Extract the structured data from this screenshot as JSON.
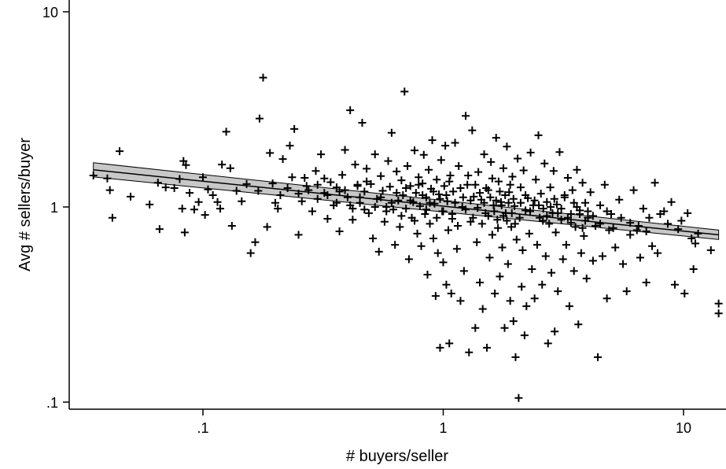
{
  "chart_data": {
    "type": "scatter",
    "title": "",
    "xlabel": "# buyers/seller",
    "ylabel": "Avg # sellers/buyer",
    "xscale": "log",
    "yscale": "log",
    "xlim": [
      0.0325,
      14
    ],
    "ylim": [
      0.0833,
      10.2
    ],
    "x_ticks": [
      {
        "value": 0.1,
        "label": ".1"
      },
      {
        "value": 1,
        "label": "1"
      },
      {
        "value": 10,
        "label": "10"
      }
    ],
    "y_ticks": [
      {
        "value": 0.1,
        "label": ".1"
      },
      {
        "value": 1,
        "label": "1"
      },
      {
        "value": 10,
        "label": "10"
      }
    ],
    "marker": "plus",
    "grid": false,
    "fit_line": {
      "type": "linear-on-log",
      "x_start": 0.035,
      "y_start": 1.55,
      "x_end": 14,
      "y_end": 0.72,
      "confidence_band": true,
      "band_fill": "#c8c8c8"
    },
    "points": [
      [
        0.035,
        1.45
      ],
      [
        0.04,
        1.4
      ],
      [
        0.041,
        1.22
      ],
      [
        0.042,
        0.88
      ],
      [
        0.045,
        1.93
      ],
      [
        0.05,
        1.13
      ],
      [
        0.06,
        1.03
      ],
      [
        0.065,
        1.33
      ],
      [
        0.066,
        0.77
      ],
      [
        0.07,
        1.26
      ],
      [
        0.076,
        1.25
      ],
      [
        0.08,
        1.39
      ],
      [
        0.082,
        0.98
      ],
      [
        0.083,
        1.72
      ],
      [
        0.084,
        0.74
      ],
      [
        0.085,
        1.64
      ],
      [
        0.088,
        1.18
      ],
      [
        0.092,
        0.97
      ],
      [
        0.096,
        1.06
      ],
      [
        0.1,
        1.42
      ],
      [
        0.102,
        0.91
      ],
      [
        0.105,
        1.23
      ],
      [
        0.11,
        1.15
      ],
      [
        0.115,
        1.06
      ],
      [
        0.118,
        0.98
      ],
      [
        0.12,
        1.65
      ],
      [
        0.125,
        2.43
      ],
      [
        0.13,
        1.58
      ],
      [
        0.132,
        0.8
      ],
      [
        0.138,
        1.21
      ],
      [
        0.145,
        1.07
      ],
      [
        0.152,
        1.31
      ],
      [
        0.158,
        0.58
      ],
      [
        0.165,
        0.66
      ],
      [
        0.17,
        1.21
      ],
      [
        0.172,
        2.84
      ],
      [
        0.178,
        4.6
      ],
      [
        0.185,
        0.79
      ],
      [
        0.19,
        1.89
      ],
      [
        0.195,
        1.32
      ],
      [
        0.2,
        1.05
      ],
      [
        0.205,
        0.98
      ],
      [
        0.21,
        1.15
      ],
      [
        0.215,
        1.76
      ],
      [
        0.225,
        1.25
      ],
      [
        0.23,
        2.06
      ],
      [
        0.235,
        1.42
      ],
      [
        0.24,
        2.51
      ],
      [
        0.25,
        0.72
      ],
      [
        0.258,
        1.07
      ],
      [
        0.265,
        1.41
      ],
      [
        0.275,
        1.22
      ],
      [
        0.285,
        0.95
      ],
      [
        0.295,
        1.53
      ],
      [
        0.3,
        1.1
      ],
      [
        0.31,
        1.86
      ],
      [
        0.32,
        1.18
      ],
      [
        0.33,
        0.87
      ],
      [
        0.34,
        1.34
      ],
      [
        0.35,
        1.02
      ],
      [
        0.36,
        1.26
      ],
      [
        0.37,
        0.75
      ],
      [
        0.38,
        1.46
      ],
      [
        0.39,
        1.96
      ],
      [
        0.4,
        1.12
      ],
      [
        0.41,
        3.13
      ],
      [
        0.42,
        0.86
      ],
      [
        0.43,
        1.65
      ],
      [
        0.44,
        1.3
      ],
      [
        0.45,
        1.05
      ],
      [
        0.46,
        2.7
      ],
      [
        0.47,
        1.2
      ],
      [
        0.48,
        1.57
      ],
      [
        0.49,
        0.93
      ],
      [
        0.5,
        1.31
      ],
      [
        0.51,
        0.69
      ],
      [
        0.52,
        1.86
      ],
      [
        0.53,
        1.1
      ],
      [
        0.54,
        0.59
      ],
      [
        0.55,
        1.44
      ],
      [
        0.56,
        1.21
      ],
      [
        0.57,
        0.84
      ],
      [
        0.58,
        1.0
      ],
      [
        0.59,
        1.72
      ],
      [
        0.6,
        1.27
      ],
      [
        0.61,
        2.4
      ],
      [
        0.62,
        0.97
      ],
      [
        0.63,
        0.64
      ],
      [
        0.64,
        1.52
      ],
      [
        0.65,
        1.08
      ],
      [
        0.66,
        0.79
      ],
      [
        0.67,
        1.37
      ],
      [
        0.68,
        1.15
      ],
      [
        0.69,
        3.9
      ],
      [
        0.7,
        0.98
      ],
      [
        0.71,
        1.62
      ],
      [
        0.72,
        0.54
      ],
      [
        0.73,
        1.28
      ],
      [
        0.74,
        0.88
      ],
      [
        0.75,
        1.06
      ],
      [
        0.76,
        1.95
      ],
      [
        0.77,
        1.18
      ],
      [
        0.78,
        0.73
      ],
      [
        0.79,
        1.42
      ],
      [
        0.8,
        1.01
      ],
      [
        0.81,
        0.63
      ],
      [
        0.82,
        1.32
      ],
      [
        0.83,
        1.85
      ],
      [
        0.84,
        0.92
      ],
      [
        0.85,
        1.12
      ],
      [
        0.86,
        0.45
      ],
      [
        0.87,
        1.55
      ],
      [
        0.88,
        0.82
      ],
      [
        0.89,
        1.24
      ],
      [
        0.9,
        2.2
      ],
      [
        0.91,
        0.69
      ],
      [
        0.92,
        1.04
      ],
      [
        0.93,
        0.35
      ],
      [
        0.94,
        1.38
      ],
      [
        0.95,
        0.58
      ],
      [
        0.96,
        1.16
      ],
      [
        0.97,
        0.19
      ],
      [
        0.98,
        1.74
      ],
      [
        0.99,
        0.95
      ],
      [
        1.0,
        0.52
      ],
      [
        1.01,
        1.28
      ],
      [
        1.02,
        2.06
      ],
      [
        1.03,
        0.4
      ],
      [
        1.04,
        1.07
      ],
      [
        1.05,
        0.76
      ],
      [
        1.06,
        0.2
      ],
      [
        1.07,
        1.45
      ],
      [
        1.08,
        0.36
      ],
      [
        1.09,
        0.87
      ],
      [
        1.1,
        1.2
      ],
      [
        1.12,
        2.13
      ],
      [
        1.14,
        0.61
      ],
      [
        1.16,
        1.62
      ],
      [
        1.18,
        0.33
      ],
      [
        1.2,
        1.0
      ],
      [
        1.22,
        0.47
      ],
      [
        1.24,
        2.93
      ],
      [
        1.26,
        1.3
      ],
      [
        1.28,
        0.18
      ],
      [
        1.3,
        0.84
      ],
      [
        1.32,
        2.47
      ],
      [
        1.34,
        1.13
      ],
      [
        1.36,
        0.24
      ],
      [
        1.38,
        0.66
      ],
      [
        1.4,
        1.51
      ],
      [
        1.42,
        0.41
      ],
      [
        1.44,
        1.09
      ],
      [
        1.46,
        0.3
      ],
      [
        1.48,
        1.86
      ],
      [
        1.5,
        0.93
      ],
      [
        1.52,
        0.19
      ],
      [
        1.54,
        1.22
      ],
      [
        1.56,
        0.55
      ],
      [
        1.58,
        1.7
      ],
      [
        1.6,
        0.72
      ],
      [
        1.62,
        1.02
      ],
      [
        1.64,
        0.36
      ],
      [
        1.66,
        2.26
      ],
      [
        1.68,
        0.86
      ],
      [
        1.7,
        1.35
      ],
      [
        1.72,
        0.44
      ],
      [
        1.74,
        1.06
      ],
      [
        1.76,
        0.62
      ],
      [
        1.78,
        1.58
      ],
      [
        1.8,
        0.24
      ],
      [
        1.82,
        0.93
      ],
      [
        1.84,
        2.04
      ],
      [
        1.86,
        0.51
      ],
      [
        1.88,
        1.19
      ],
      [
        1.9,
        0.33
      ],
      [
        1.92,
        0.79
      ],
      [
        1.94,
        1.43
      ],
      [
        1.96,
        0.26
      ],
      [
        1.98,
        1.01
      ],
      [
        2.0,
        0.17
      ],
      [
        2.02,
        0.68
      ],
      [
        2.04,
        1.77
      ],
      [
        2.06,
        0.105
      ],
      [
        2.08,
        0.88
      ],
      [
        2.1,
        1.26
      ],
      [
        2.12,
        0.39
      ],
      [
        2.14,
        0.6
      ],
      [
        2.16,
        1.54
      ],
      [
        2.18,
        0.22
      ],
      [
        2.2,
        0.96
      ],
      [
        2.22,
        0.31
      ],
      [
        2.25,
        1.11
      ],
      [
        2.28,
        0.73
      ],
      [
        2.31,
        1.9
      ],
      [
        2.34,
        0.48
      ],
      [
        2.37,
        1.02
      ],
      [
        2.4,
        0.34
      ],
      [
        2.43,
        1.38
      ],
      [
        2.46,
        0.64
      ],
      [
        2.49,
        2.33
      ],
      [
        2.52,
        0.88
      ],
      [
        2.55,
        1.17
      ],
      [
        2.58,
        0.4
      ],
      [
        2.61,
        0.98
      ],
      [
        2.64,
        1.67
      ],
      [
        2.67,
        0.56
      ],
      [
        2.7,
        1.06
      ],
      [
        2.73,
        0.2
      ],
      [
        2.76,
        0.82
      ],
      [
        2.79,
        1.26
      ],
      [
        2.82,
        0.46
      ],
      [
        2.85,
        0.93
      ],
      [
        2.88,
        1.53
      ],
      [
        2.91,
        0.23
      ],
      [
        2.94,
        0.74
      ],
      [
        2.97,
        1.03
      ],
      [
        3.0,
        0.37
      ],
      [
        3.05,
        1.91
      ],
      [
        3.1,
        0.86
      ],
      [
        3.15,
        0.54
      ],
      [
        3.2,
        1.12
      ],
      [
        3.25,
        0.64
      ],
      [
        3.3,
        1.41
      ],
      [
        3.35,
        0.31
      ],
      [
        3.4,
        0.92
      ],
      [
        3.45,
        1.22
      ],
      [
        3.5,
        0.47
      ],
      [
        3.55,
        0.79
      ],
      [
        3.6,
        1.55
      ],
      [
        3.65,
        0.25
      ],
      [
        3.7,
        0.96
      ],
      [
        3.75,
        0.58
      ],
      [
        3.8,
        1.33
      ],
      [
        3.85,
        0.71
      ],
      [
        3.9,
        1.05
      ],
      [
        3.95,
        0.43
      ],
      [
        4.0,
        0.88
      ],
      [
        4.1,
        1.19
      ],
      [
        4.2,
        0.53
      ],
      [
        4.3,
        0.8
      ],
      [
        4.4,
        0.17
      ],
      [
        4.5,
        1.02
      ],
      [
        4.6,
        0.56
      ],
      [
        4.7,
        1.3
      ],
      [
        4.8,
        0.34
      ],
      [
        4.9,
        0.76
      ],
      [
        5.0,
        0.92
      ],
      [
        5.2,
        0.62
      ],
      [
        5.4,
        1.09
      ],
      [
        5.6,
        0.51
      ],
      [
        5.8,
        0.37
      ],
      [
        6.0,
        0.83
      ],
      [
        6.2,
        1.22
      ],
      [
        6.4,
        0.76
      ],
      [
        6.6,
        0.55
      ],
      [
        6.8,
        0.98
      ],
      [
        7.0,
        0.41
      ],
      [
        7.2,
        0.88
      ],
      [
        7.4,
        0.63
      ],
      [
        7.6,
        1.33
      ],
      [
        7.8,
        0.58
      ],
      [
        8.0,
        0.92
      ],
      [
        8.3,
        0.95
      ],
      [
        8.6,
        0.82
      ],
      [
        8.9,
        1.06
      ],
      [
        9.2,
        0.4
      ],
      [
        9.5,
        0.77
      ],
      [
        9.8,
        0.85
      ],
      [
        10.1,
        0.36
      ],
      [
        10.4,
        0.93
      ],
      [
        10.8,
        0.69
      ],
      [
        11.0,
        0.48
      ],
      [
        11.2,
        0.65
      ],
      [
        11.5,
        0.73
      ],
      [
        13.0,
        0.6
      ],
      [
        14.0,
        0.32
      ],
      [
        14.0,
        0.285
      ],
      [
        0.52,
        1.0
      ],
      [
        0.55,
        1.12
      ],
      [
        0.58,
        0.95
      ],
      [
        0.61,
        1.05
      ],
      [
        0.64,
        1.18
      ],
      [
        0.67,
        0.9
      ],
      [
        0.7,
        1.25
      ],
      [
        0.73,
        1.08
      ],
      [
        0.76,
        0.85
      ],
      [
        0.79,
        1.3
      ],
      [
        0.82,
        1.15
      ],
      [
        0.85,
        0.97
      ],
      [
        0.88,
        1.05
      ],
      [
        0.91,
        1.2
      ],
      [
        0.94,
        0.88
      ],
      [
        0.97,
        1.1
      ],
      [
        1.0,
        0.95
      ],
      [
        1.03,
        1.15
      ],
      [
        1.06,
        1.35
      ],
      [
        1.09,
        0.92
      ],
      [
        1.12,
        1.05
      ],
      [
        1.15,
        0.8
      ],
      [
        1.18,
        1.25
      ],
      [
        1.21,
        1.12
      ],
      [
        1.24,
        0.97
      ],
      [
        1.27,
        1.45
      ],
      [
        1.3,
        1.08
      ],
      [
        1.33,
        0.88
      ],
      [
        1.36,
        1.3
      ],
      [
        1.39,
        0.99
      ],
      [
        1.42,
        1.18
      ],
      [
        1.45,
        0.82
      ],
      [
        1.48,
        1.05
      ],
      [
        1.51,
        1.25
      ],
      [
        1.54,
        0.9
      ],
      [
        1.57,
        1.12
      ],
      [
        1.6,
        1.4
      ],
      [
        1.63,
        0.95
      ],
      [
        1.66,
        1.08
      ],
      [
        1.69,
        0.78
      ],
      [
        1.72,
        1.2
      ],
      [
        1.75,
        1.02
      ],
      [
        1.78,
        0.9
      ],
      [
        1.81,
        1.15
      ],
      [
        1.84,
        0.85
      ],
      [
        1.87,
        1.05
      ],
      [
        1.9,
        1.3
      ],
      [
        1.93,
        0.93
      ],
      [
        1.96,
        1.1
      ],
      [
        1.99,
        0.82
      ],
      [
        0.3,
        1.3
      ],
      [
        0.33,
        1.15
      ],
      [
        0.36,
        1.05
      ],
      [
        0.39,
        1.22
      ],
      [
        0.42,
        0.98
      ],
      [
        0.45,
        1.12
      ],
      [
        0.48,
        1.35
      ],
      [
        0.25,
        1.17
      ],
      [
        0.27,
        1.28
      ],
      [
        0.32,
        1.4
      ],
      [
        0.37,
        1.2
      ],
      [
        0.41,
        1.02
      ],
      [
        0.44,
        1.28
      ],
      [
        0.47,
        0.97
      ],
      [
        2.1,
        1.05
      ],
      [
        2.3,
        0.95
      ],
      [
        2.5,
        1.02
      ],
      [
        2.7,
        0.9
      ],
      [
        2.9,
        1.1
      ],
      [
        3.1,
        0.98
      ],
      [
        3.3,
        0.88
      ],
      [
        3.5,
        1.05
      ],
      [
        3.7,
        0.92
      ],
      [
        3.9,
        0.85
      ],
      [
        4.2,
        0.9
      ],
      [
        4.5,
        0.82
      ],
      [
        4.8,
        0.95
      ],
      [
        5.1,
        0.78
      ],
      [
        5.5,
        0.88
      ],
      [
        6.0,
        0.72
      ],
      [
        6.5,
        0.8
      ],
      [
        7.0,
        0.75
      ],
      [
        2.2,
        1.15
      ],
      [
        2.4,
        1.08
      ],
      [
        2.6,
        0.85
      ],
      [
        2.8,
        1.0
      ],
      [
        3.0,
        0.93
      ],
      [
        3.2,
        1.15
      ],
      [
        3.4,
        0.83
      ],
      [
        3.6,
        1.0
      ],
      [
        3.8,
        0.78
      ],
      [
        4.0,
        0.95
      ]
    ]
  }
}
